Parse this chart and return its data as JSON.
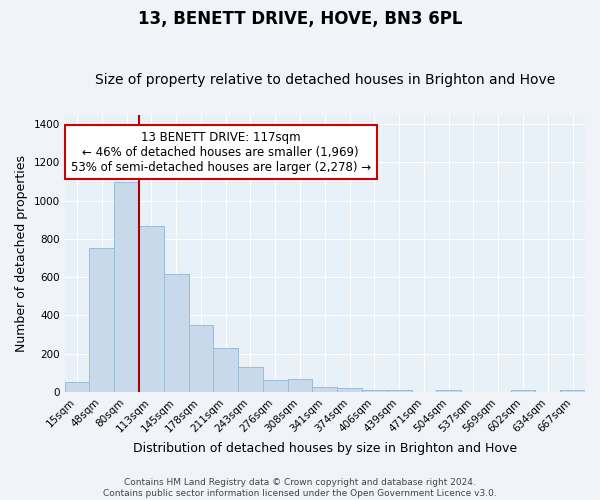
{
  "title": "13, BENETT DRIVE, HOVE, BN3 6PL",
  "subtitle": "Size of property relative to detached houses in Brighton and Hove",
  "xlabel": "Distribution of detached houses by size in Brighton and Hove",
  "ylabel": "Number of detached properties",
  "categories": [
    "15sqm",
    "48sqm",
    "80sqm",
    "113sqm",
    "145sqm",
    "178sqm",
    "211sqm",
    "243sqm",
    "276sqm",
    "308sqm",
    "341sqm",
    "374sqm",
    "406sqm",
    "439sqm",
    "471sqm",
    "504sqm",
    "537sqm",
    "569sqm",
    "602sqm",
    "634sqm",
    "667sqm"
  ],
  "values": [
    50,
    750,
    1095,
    870,
    615,
    350,
    228,
    130,
    65,
    70,
    28,
    20,
    10,
    8,
    0,
    10,
    0,
    0,
    10,
    0,
    10
  ],
  "bar_color": "#c8d9ec",
  "bar_edge_color": "#9bbdd4",
  "vline_x": 2.5,
  "vline_color": "#aa0000",
  "annotation_text": "13 BENETT DRIVE: 117sqm\n← 46% of detached houses are smaller (1,969)\n53% of semi-detached houses are larger (2,278) →",
  "annotation_box_facecolor": "#ffffff",
  "annotation_box_edgecolor": "#cc0000",
  "ylim": [
    0,
    1450
  ],
  "yticks": [
    0,
    200,
    400,
    600,
    800,
    1000,
    1200,
    1400
  ],
  "footer_line1": "Contains HM Land Registry data © Crown copyright and database right 2024.",
  "footer_line2": "Contains public sector information licensed under the Open Government Licence v3.0.",
  "bg_color": "#f0f4f8",
  "plot_bg_color": "#e8f0f8",
  "grid_color": "#ffffff",
  "title_fontsize": 12,
  "subtitle_fontsize": 10,
  "axis_label_fontsize": 9,
  "tick_fontsize": 7.5,
  "annotation_fontsize": 8.5,
  "footer_fontsize": 6.5
}
